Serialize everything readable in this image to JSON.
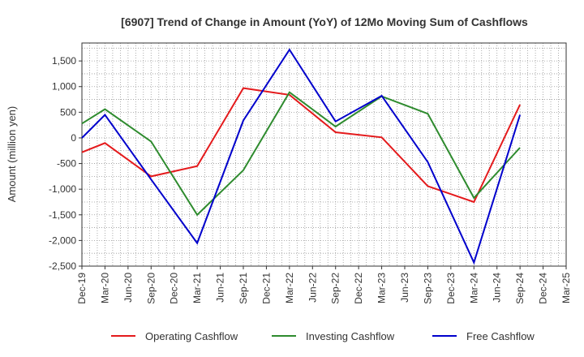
{
  "chart_data": {
    "type": "line",
    "title": "[6907]  Trend of Change in Amount (YoY) of 12Mo Moving Sum of Cashflows",
    "xlabel": "",
    "ylabel": "Amount (million yen)",
    "ylim": [
      -2500,
      1850
    ],
    "grid": true,
    "legend_position": "bottom",
    "categories": [
      "Dec-19",
      "Mar-20",
      "Jun-20",
      "Sep-20",
      "Dec-20",
      "Mar-21",
      "Jun-21",
      "Sep-21",
      "Dec-21",
      "Mar-22",
      "Jun-22",
      "Sep-22",
      "Dec-22",
      "Mar-23",
      "Jun-23",
      "Sep-23",
      "Dec-23",
      "Mar-24",
      "Jun-24",
      "Sep-24",
      "Dec-24",
      "Mar-25"
    ],
    "y_ticks": [
      1500,
      1000,
      500,
      0,
      -500,
      -1000,
      -1500,
      -2000,
      -2500
    ],
    "y_tick_labels": [
      "1,500",
      "1,000",
      "500",
      "0",
      "-500",
      "-1,000",
      "-1,500",
      "-2,000",
      "-2,500"
    ],
    "series": [
      {
        "name": "Operating Cashflow",
        "color": "#e41a1c",
        "values": [
          -280,
          -100,
          null,
          -750,
          null,
          -550,
          null,
          970,
          null,
          840,
          null,
          110,
          null,
          10,
          null,
          -940,
          null,
          -1250,
          null,
          650,
          null,
          null
        ]
      },
      {
        "name": "Investing Cashflow",
        "color": "#2e8b2e",
        "values": [
          280,
          560,
          null,
          -70,
          null,
          -1500,
          null,
          -630,
          null,
          890,
          null,
          220,
          null,
          810,
          null,
          470,
          null,
          -1170,
          null,
          -190,
          null,
          null
        ]
      },
      {
        "name": "Free Cashflow",
        "color": "#0000cc",
        "values": [
          0,
          450,
          null,
          -810,
          null,
          -2050,
          null,
          340,
          null,
          1720,
          null,
          320,
          null,
          820,
          null,
          -470,
          null,
          -2430,
          null,
          450,
          null,
          null
        ]
      }
    ]
  }
}
